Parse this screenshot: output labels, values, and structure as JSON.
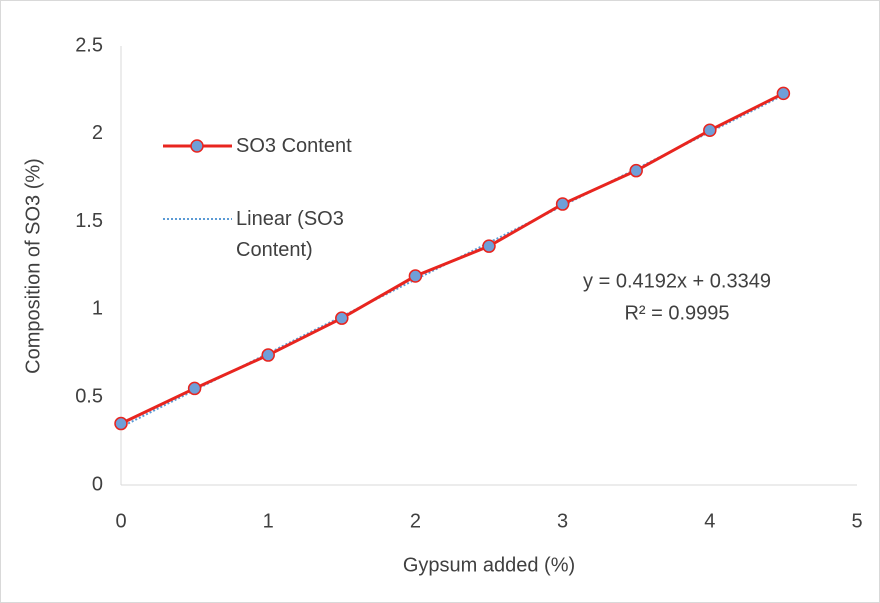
{
  "chart_data": {
    "type": "line",
    "x_label": "Gypsum added (%)",
    "y_label": "Composition of  SO3  (%)",
    "x": [
      0,
      0.5,
      1,
      1.5,
      2,
      2.5,
      3,
      3.5,
      4,
      4.5
    ],
    "series": [
      {
        "name": "SO3 Content",
        "color": "#e8251f",
        "marker_color": "#6f9fd8",
        "values": [
          0.35,
          0.55,
          0.74,
          0.95,
          1.19,
          1.36,
          1.6,
          1.79,
          2.02,
          2.23
        ]
      },
      {
        "name": "Linear (SO3 Content)",
        "color": "#5b9bd5",
        "line_style": "dotted",
        "values": [
          0.33,
          0.54,
          0.75,
          0.96,
          1.17,
          1.38,
          1.59,
          1.8,
          2.01,
          2.22
        ]
      }
    ],
    "annotations": [
      "y = 0.4192x + 0.3349",
      "R² = 0.9995"
    ],
    "xlim": [
      0,
      5
    ],
    "xticks": [
      0,
      1,
      2,
      3,
      4,
      5
    ],
    "ylim": [
      0,
      2.5
    ],
    "yticks": [
      0,
      {
        "value": 0.5,
        "label": "0.5"
      },
      1,
      {
        "value": 1.5,
        "label": "1.5"
      },
      2,
      {
        "value": 2.5,
        "label": "2.5"
      }
    ],
    "grid": false
  }
}
